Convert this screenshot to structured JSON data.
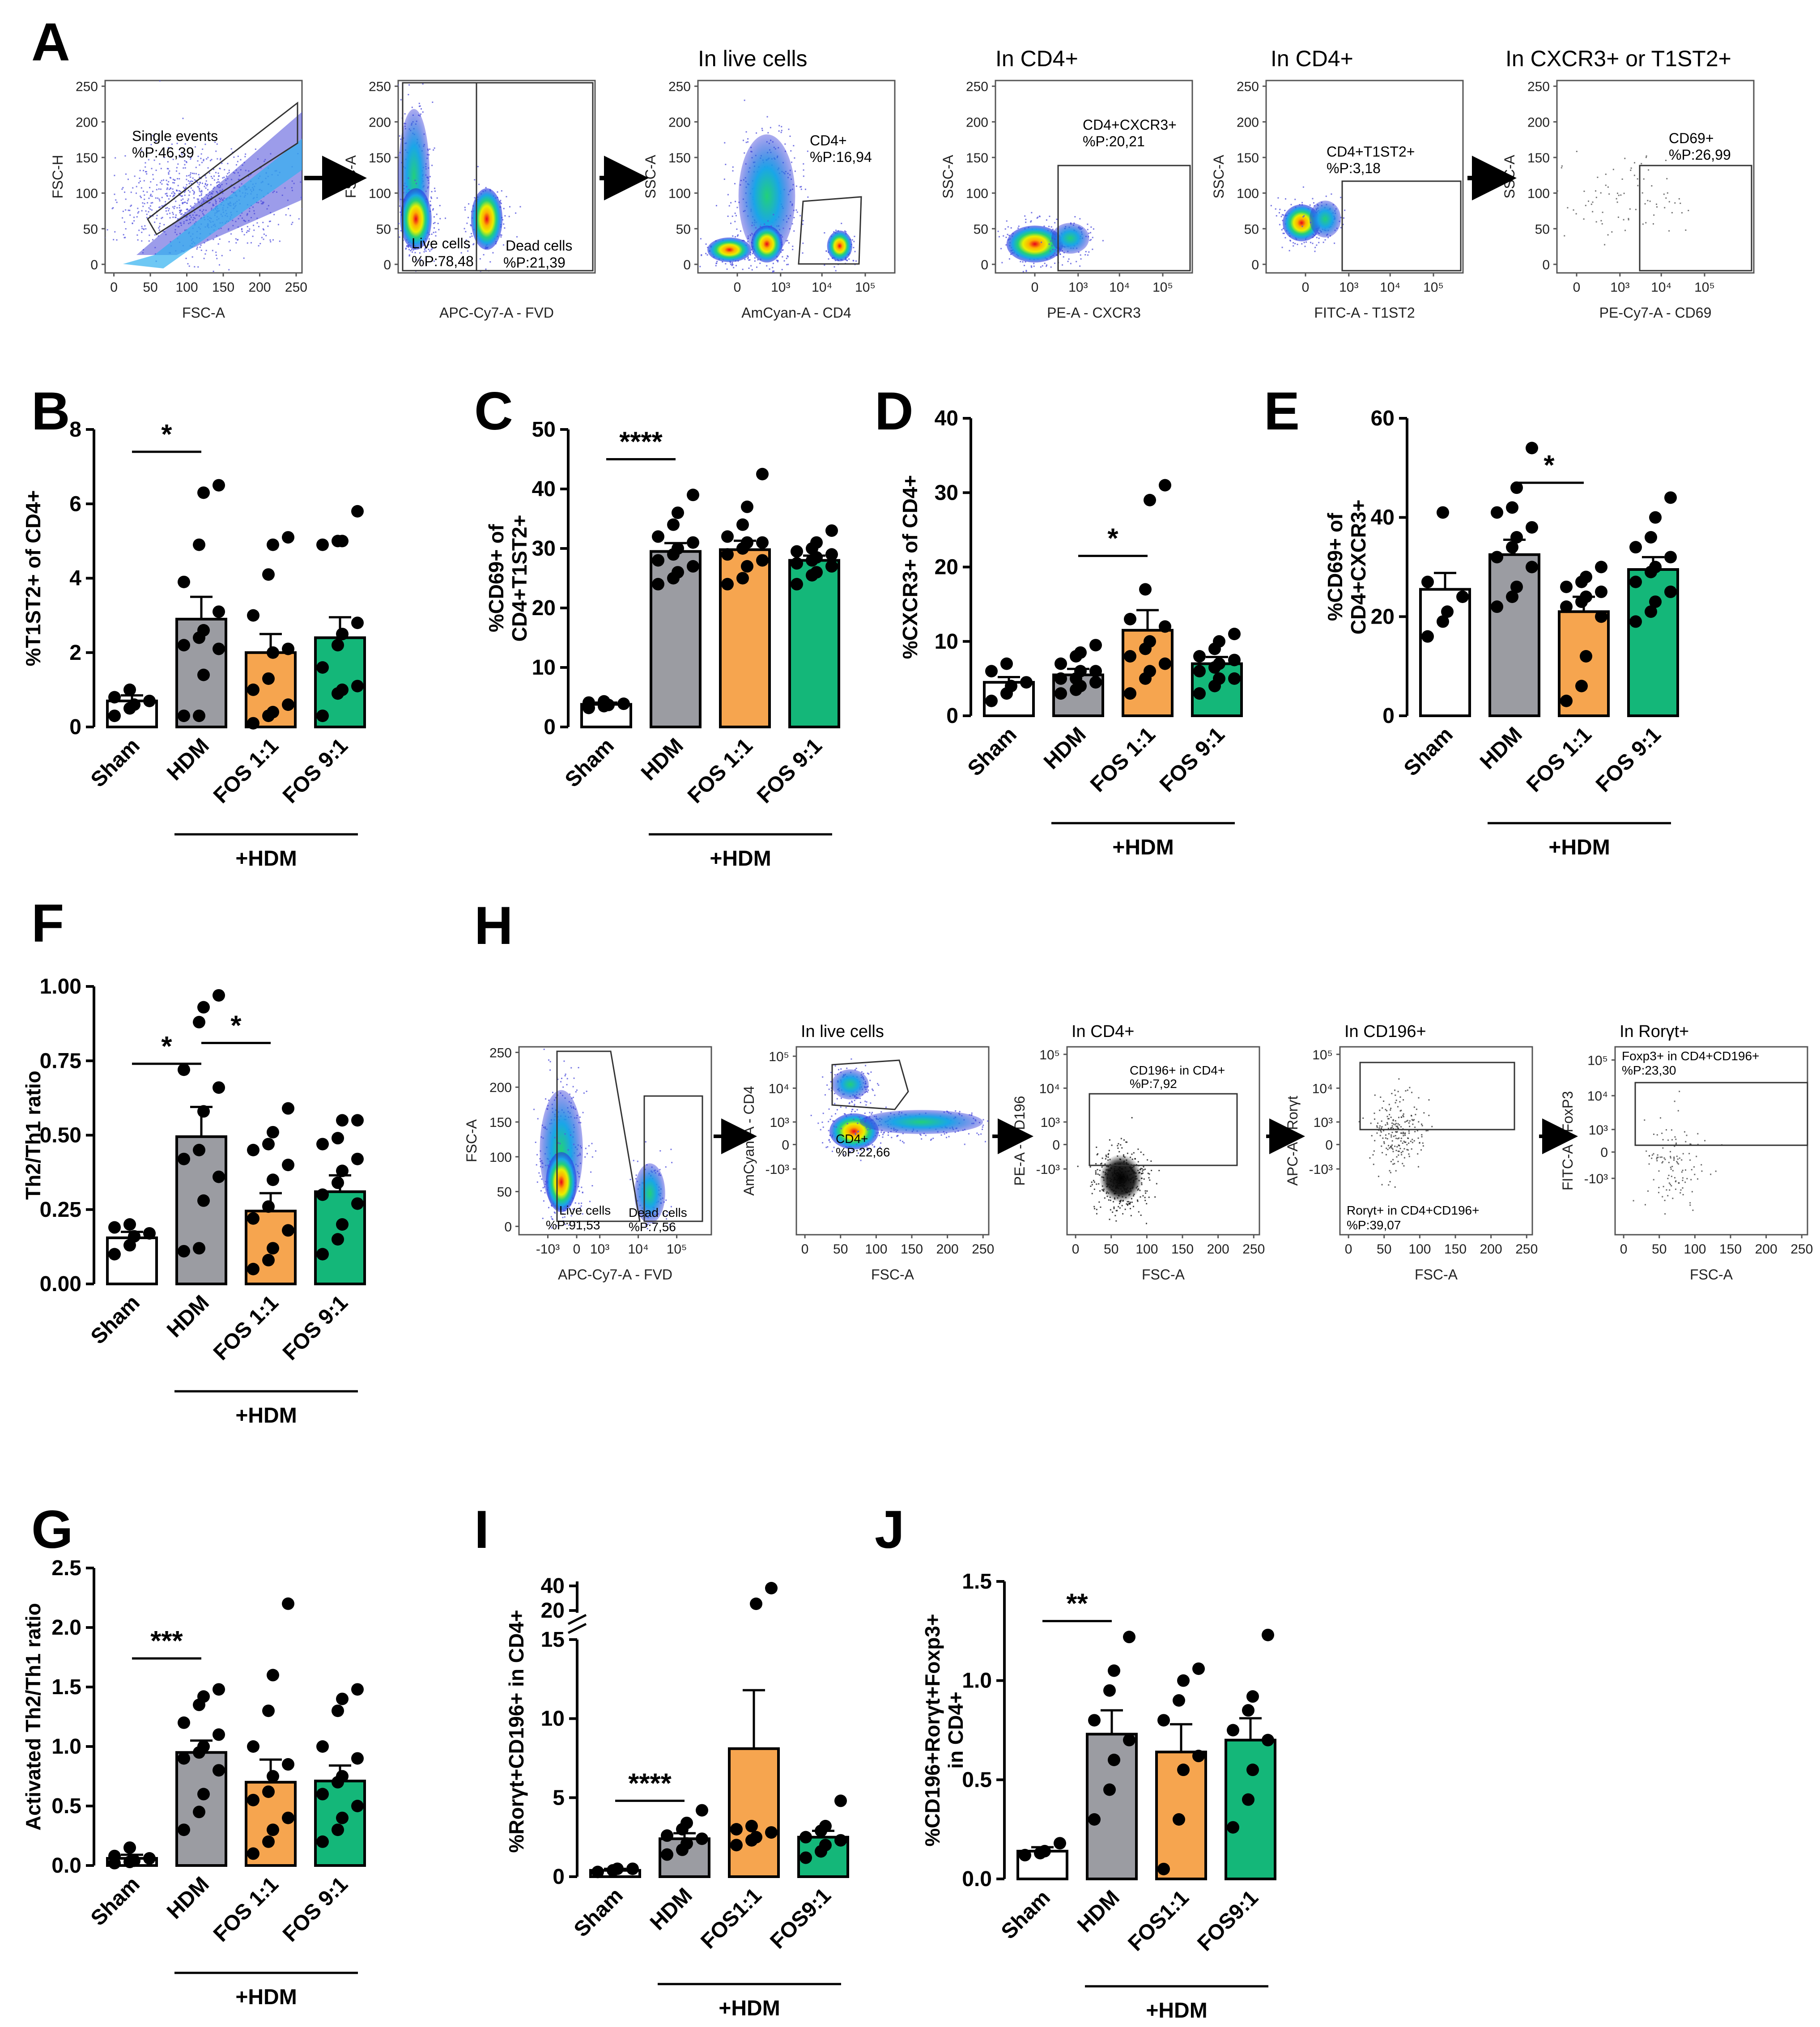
{
  "panel_labels": {
    "A": "A",
    "B": "B",
    "C": "C",
    "D": "D",
    "E": "E",
    "F": "F",
    "G": "G",
    "H": "H",
    "I": "I",
    "J": "J"
  },
  "flow_A": {
    "header_live": "In live cells",
    "header_cd4_a": "In CD4+",
    "header_cd4_b": "In CD4+",
    "header_cx": "In CXCR3+ or T1ST2+",
    "ticks_linear_256": [
      "0",
      "50",
      "100",
      "150",
      "200",
      "250"
    ],
    "ticks_log_a": [
      "0",
      "10",
      "3",
      "10",
      "4",
      "10",
      "5"
    ],
    "p1": {
      "xlabel": "FSC-A",
      "ylabel": "FSC-H",
      "gate_name": "Single events",
      "gate_pct": "%P:46,39"
    },
    "p2": {
      "xlabel": "APC-Cy7-A - FVD",
      "ylabel": "FSC-A",
      "gate1_name": "Live cells",
      "gate1_pct": "%P:78,48",
      "gate2_name": "Dead cells",
      "gate2_pct": "%P:21,39"
    },
    "p3": {
      "xlabel": "AmCyan-A - CD4",
      "ylabel": "SSC-A",
      "gate_name": "CD4+",
      "gate_pct": "%P:16,94"
    },
    "p4": {
      "xlabel": "PE-A - CXCR3",
      "ylabel": "SSC-A",
      "gate_name": "CD4+CXCR3+",
      "gate_pct": "%P:20,21"
    },
    "p5": {
      "xlabel": "FITC-A - T1ST2",
      "ylabel": "SSC-A",
      "gate_name": "CD4+T1ST2+",
      "gate_pct": "%P:3,18"
    },
    "p6": {
      "xlabel": "PE-Cy7-A - CD69",
      "ylabel": "SSC-A",
      "gate_name": "CD69+",
      "gate_pct": "%P:26,99"
    }
  },
  "flow_H": {
    "header_live": "In live cells",
    "header_cd4": "In CD4+",
    "header_cd196": "In CD196+",
    "header_ror": "In Rorγt+",
    "q1": {
      "xlabel": "APC-Cy7-A - FVD",
      "ylabel": "FSC-A",
      "gate1_name": "Live cells",
      "gate1_pct": "%P:91,53",
      "gate2_name": "Dead cells",
      "gate2_pct": "%P:7,56"
    },
    "q2": {
      "xlabel": "FSC-A",
      "ylabel": "AmCyan-A - CD4",
      "gate_name": "CD4+",
      "gate_pct": "%P:22,66"
    },
    "q3": {
      "xlabel": "FSC-A",
      "ylabel": "PE-A - CD196",
      "gate_name": "CD196+ in CD4+",
      "gate_pct": "%P:7,92"
    },
    "q4": {
      "xlabel": "FSC-A",
      "ylabel": "APC-A - Rorγt",
      "gate_name": "Rorγt+ in CD4+CD196+",
      "gate_pct": "%P:39,07"
    },
    "q5": {
      "xlabel": "FSC-A",
      "ylabel": "FITC-A - FoxP3",
      "gate_name": "Foxp3+ in CD4+CD196+",
      "gate_pct": "%P:23,30"
    }
  },
  "colors": {
    "sham": "#ffffff",
    "hdm": "#9b9ca2",
    "fos11": "#f6a54f",
    "fos91": "#14b779"
  },
  "chart_data": [
    {
      "id": "B",
      "type": "bar",
      "ylabel": "%T1ST2+ of CD4+",
      "ylim": [
        0,
        8
      ],
      "yticks": [
        "0",
        "2",
        "4",
        "6",
        "8"
      ],
      "categories": [
        "Sham",
        "HDM",
        "FOS 1:1",
        "FOS 9:1"
      ],
      "bracket_label": "+HDM",
      "means": [
        0.7,
        2.9,
        2.0,
        2.4
      ],
      "sem": [
        0.15,
        0.6,
        0.5,
        0.55
      ],
      "points": [
        [
          0.3,
          0.5,
          0.6,
          0.7,
          0.8,
          1.0
        ],
        [
          0.3,
          0.3,
          1.4,
          2.1,
          2.2,
          2.4,
          2.6,
          3.1,
          3.9,
          4.9,
          6.3,
          6.5
        ],
        [
          0.1,
          0.3,
          0.4,
          0.6,
          1.0,
          1.3,
          2.0,
          2.1,
          3.0,
          4.1,
          4.9,
          5.1
        ],
        [
          0.3,
          0.9,
          1.0,
          1.1,
          1.6,
          2.2,
          2.5,
          2.8,
          4.9,
          5.0,
          5.0,
          5.8
        ]
      ],
      "sig": [
        {
          "label": "*",
          "from": 0,
          "to": 1,
          "y": 7.4
        }
      ]
    },
    {
      "id": "C",
      "type": "bar",
      "ylabel": "%CD69+ of CD4+T1ST2+",
      "ylim": [
        0,
        50
      ],
      "yticks": [
        "0",
        "10",
        "20",
        "30",
        "40",
        "50"
      ],
      "categories": [
        "Sham",
        "HDM",
        "FOS 1:1",
        "FOS 9:1"
      ],
      "bracket_label": "+HDM",
      "means": [
        3.8,
        29.5,
        29.8,
        28.0
      ],
      "sem": [
        0.3,
        1.4,
        1.5,
        0.8
      ],
      "points": [
        [
          3.2,
          3.5,
          3.7,
          3.9,
          4.1,
          4.3
        ],
        [
          24,
          25,
          26,
          27,
          28,
          29,
          30,
          31,
          32,
          34,
          36,
          39
        ],
        [
          24,
          25,
          27,
          28,
          29,
          30,
          31,
          31,
          32,
          34,
          37,
          42.5
        ],
        [
          24,
          25.5,
          26,
          27,
          27.5,
          28,
          28.5,
          29,
          29.5,
          30,
          31,
          33
        ]
      ],
      "sig": [
        {
          "label": "****",
          "from": 0,
          "to": 1,
          "y": 45
        }
      ]
    },
    {
      "id": "D",
      "type": "bar",
      "ylabel": "%CXCR3+ of CD4+",
      "ylim": [
        0,
        40
      ],
      "yticks": [
        "0",
        "10",
        "20",
        "30",
        "40"
      ],
      "categories": [
        "Sham",
        "HDM",
        "FOS 1:1",
        "FOS 9:1"
      ],
      "bracket_label": "+HDM",
      "means": [
        4.5,
        5.5,
        11.5,
        7.0
      ],
      "sem": [
        0.7,
        0.8,
        2.7,
        0.9
      ],
      "points": [
        [
          2,
          3,
          4,
          4.5,
          6,
          7
        ],
        [
          3,
          3.5,
          4,
          4.5,
          5,
          5,
          6,
          6,
          7,
          8,
          8.5,
          9.5
        ],
        [
          3,
          5,
          6,
          7,
          8,
          9,
          10,
          12,
          13,
          17,
          29,
          31
        ],
        [
          3,
          4,
          5,
          5,
          6,
          6.5,
          7,
          7.5,
          8,
          9,
          10,
          11
        ]
      ],
      "sig": [
        {
          "label": "*",
          "from": 1,
          "to": 2,
          "y": 21.5
        }
      ]
    },
    {
      "id": "E",
      "type": "bar",
      "ylabel": "%CD69+ of CD4+CXCR3+",
      "ylim": [
        0,
        60
      ],
      "yticks": [
        "0",
        "20",
        "40",
        "60"
      ],
      "categories": [
        "Sham",
        "HDM",
        "FOS 1:1",
        "FOS 9:1"
      ],
      "bracket_label": "+HDM",
      "means": [
        25.5,
        32.5,
        21.0,
        29.5
      ],
      "sem": [
        3.3,
        3.0,
        3.0,
        2.5
      ],
      "points": [
        [
          16,
          19,
          21,
          24,
          27,
          41
        ],
        [
          22,
          24,
          26,
          30,
          32,
          34,
          36,
          38,
          41,
          42,
          46,
          54
        ],
        [
          3,
          6,
          12,
          20,
          22,
          23,
          24,
          25,
          26,
          27,
          28,
          30
        ],
        [
          19,
          21,
          23,
          25,
          27,
          29,
          30,
          32,
          34,
          36,
          40,
          44
        ]
      ],
      "sig": [
        {
          "label": "*",
          "from": 1,
          "to": 2,
          "y": 47
        }
      ]
    },
    {
      "id": "F",
      "type": "bar",
      "ylabel": "Th2/Th1 ratio",
      "ylim": [
        0,
        1
      ],
      "yticks": [
        "0.00",
        "0.25",
        "0.50",
        "0.75",
        "1.00"
      ],
      "categories": [
        "Sham",
        "HDM",
        "FOS 1:1",
        "FOS 9:1"
      ],
      "bracket_label": "+HDM",
      "means": [
        0.155,
        0.495,
        0.245,
        0.31
      ],
      "sem": [
        0.02,
        0.1,
        0.06,
        0.055
      ],
      "points": [
        [
          0.1,
          0.13,
          0.16,
          0.17,
          0.19,
          0.2
        ],
        [
          0.11,
          0.12,
          0.28,
          0.36,
          0.42,
          0.45,
          0.58,
          0.66,
          0.72,
          0.88,
          0.93,
          0.97
        ],
        [
          0.05,
          0.08,
          0.12,
          0.18,
          0.22,
          0.26,
          0.35,
          0.4,
          0.45,
          0.47,
          0.51,
          0.59
        ],
        [
          0.1,
          0.15,
          0.2,
          0.27,
          0.3,
          0.34,
          0.38,
          0.42,
          0.47,
          0.49,
          0.55,
          0.55
        ]
      ],
      "sig": [
        {
          "label": "*",
          "from": 0,
          "to": 1,
          "y": 0.74
        },
        {
          "label": "*",
          "from": 1,
          "to": 2,
          "y": 0.81
        }
      ]
    },
    {
      "id": "G",
      "type": "bar",
      "ylabel": "Activated Th2/Th1 ratio",
      "ylim": [
        0,
        2.5
      ],
      "yticks": [
        "0.0",
        "0.5",
        "1.0",
        "1.5",
        "2.0",
        "2.5"
      ],
      "categories": [
        "Sham",
        "HDM",
        "FOS 1:1",
        "FOS 9:1"
      ],
      "bracket_label": "+HDM",
      "means": [
        0.06,
        0.95,
        0.7,
        0.71
      ],
      "sem": [
        0.03,
        0.1,
        0.19,
        0.13
      ],
      "points": [
        [
          0.02,
          0.03,
          0.04,
          0.06,
          0.08,
          0.15
        ],
        [
          0.3,
          0.45,
          0.6,
          0.8,
          0.9,
          0.95,
          1.0,
          1.1,
          1.2,
          1.35,
          1.42,
          1.48
        ],
        [
          0.1,
          0.2,
          0.3,
          0.4,
          0.55,
          0.62,
          0.75,
          0.85,
          1.0,
          1.3,
          1.6,
          2.2
        ],
        [
          0.2,
          0.3,
          0.4,
          0.5,
          0.6,
          0.7,
          0.75,
          0.9,
          1.0,
          1.3,
          1.4,
          1.48
        ]
      ],
      "sig": [
        {
          "label": "***",
          "from": 0,
          "to": 1,
          "y": 1.74
        }
      ]
    },
    {
      "id": "I",
      "type": "bar",
      "ylabel": "%Rorγt+CD196+ in CD4+",
      "ylim": [
        0,
        15
      ],
      "ybreak": {
        "upper_ticks": [
          "20",
          "40"
        ]
      },
      "yticks": [
        "0",
        "5",
        "10",
        "15"
      ],
      "categories": [
        "Sham",
        "HDM",
        "FOS1:1",
        "FOS9:1"
      ],
      "bracket_label": "+HDM",
      "means": [
        0.4,
        2.4,
        8.1,
        2.5
      ],
      "sem": [
        0.1,
        0.35,
        3.7,
        0.4
      ],
      "points": [
        [
          0.3,
          0.4,
          0.5,
          0.5
        ],
        [
          1.4,
          1.7,
          2.1,
          2.4,
          2.6,
          3.0,
          3.4,
          4.2
        ],
        [
          2.0,
          2.3,
          2.5,
          2.8,
          3.0,
          3.2,
          25,
          32
        ],
        [
          1.2,
          1.6,
          2.0,
          2.3,
          2.5,
          2.9,
          3.2,
          4.8
        ]
      ],
      "sig": [
        {
          "label": "****",
          "from": 0,
          "to": 1,
          "y": 4.8
        }
      ]
    },
    {
      "id": "J",
      "type": "bar",
      "ylabel": "%CD196+Rorγt+Foxp3+ in CD4+",
      "ylim": [
        0,
        1.5
      ],
      "yticks": [
        "0.0",
        "0.5",
        "1.0",
        "1.5"
      ],
      "categories": [
        "Sham",
        "HDM",
        "FOS1:1",
        "FOS9:1"
      ],
      "bracket_label": "+HDM",
      "means": [
        0.14,
        0.73,
        0.64,
        0.7
      ],
      "sem": [
        0.02,
        0.12,
        0.14,
        0.11
      ],
      "points": [
        [
          0.12,
          0.13,
          0.14,
          0.18
        ],
        [
          0.3,
          0.45,
          0.6,
          0.7,
          0.8,
          0.95,
          1.05,
          1.22
        ],
        [
          0.05,
          0.3,
          0.55,
          0.62,
          0.8,
          0.9,
          1.0,
          1.06
        ],
        [
          0.26,
          0.4,
          0.55,
          0.7,
          0.75,
          0.85,
          0.92,
          1.23
        ]
      ],
      "sig": [
        {
          "label": "**",
          "from": 0,
          "to": 1,
          "y": 1.3
        }
      ]
    }
  ]
}
